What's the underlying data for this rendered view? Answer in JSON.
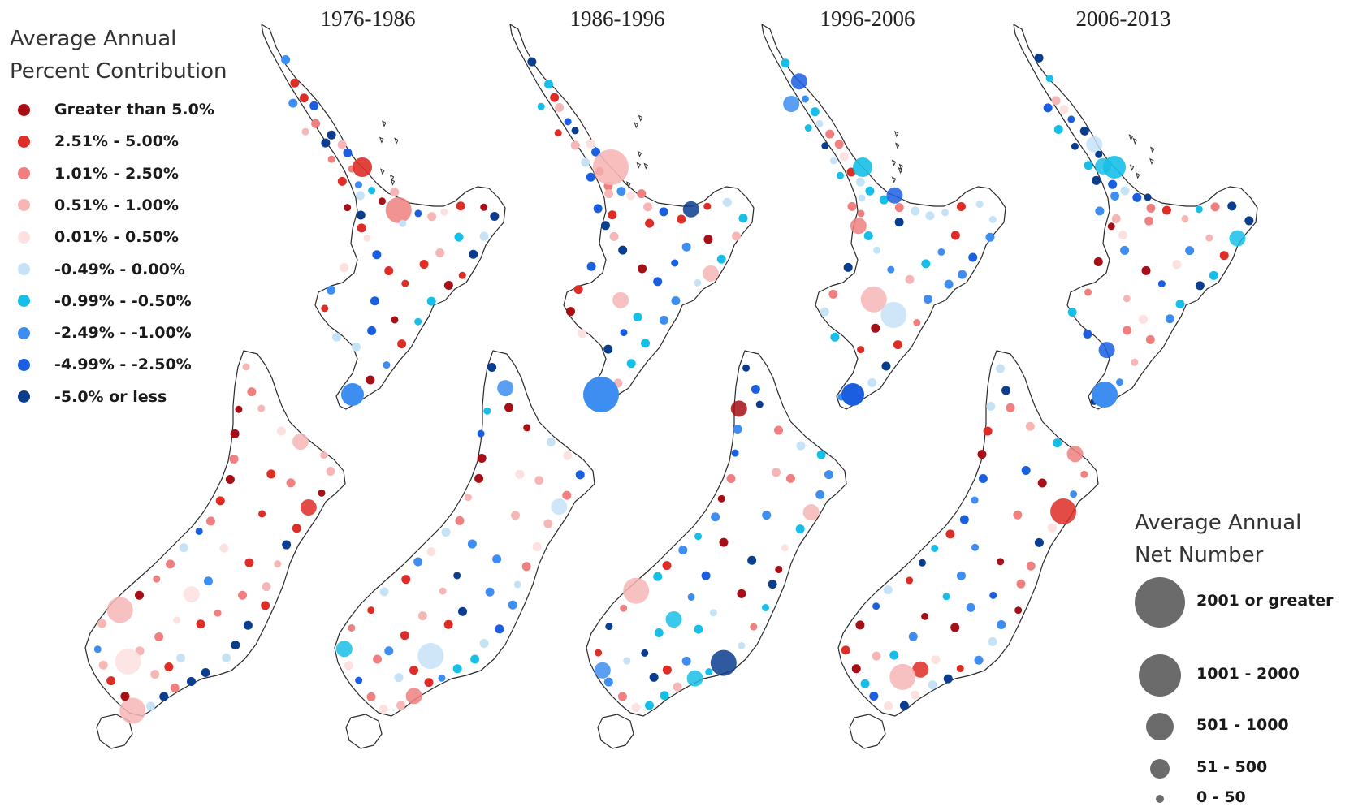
{
  "periods": [
    {
      "label": "1976-1986"
    },
    {
      "label": "1986-1996"
    },
    {
      "label": "1996-2006"
    },
    {
      "label": "2006-2013"
    }
  ],
  "legend_color": {
    "title_line1": "Average Annual",
    "title_line2": "Percent Contribution",
    "classes": [
      {
        "label": "Greater than 5.0%",
        "color": "#a50f15"
      },
      {
        "label": "2.51% - 5.00%",
        "color": "#de2d26"
      },
      {
        "label": "1.01% - 2.50%",
        "color": "#f08080"
      },
      {
        "label": "0.51% - 1.00%",
        "color": "#f7b6b6"
      },
      {
        "label": "0.01% - 0.50%",
        "color": "#fde0e0"
      },
      {
        "label": "-0.49% - 0.00%",
        "color": "#c6e2f7"
      },
      {
        "label": "-0.99% - -0.50%",
        "color": "#17bfe8"
      },
      {
        "label": "-2.49% - -1.00%",
        "color": "#3d8ef0"
      },
      {
        "label": "-4.99% - -2.50%",
        "color": "#1b5fe0"
      },
      {
        "label": "-5.0% or less",
        "color": "#0b3d8f"
      }
    ]
  },
  "legend_size": {
    "title_line1": "Average Annual",
    "title_line2": "Net Number",
    "classes": [
      {
        "label": "2001 or greater"
      },
      {
        "label": "1001 - 2000"
      },
      {
        "label": "501 - 1000"
      },
      {
        "label": "51 - 500"
      },
      {
        "label": "0 - 50"
      }
    ],
    "symbol_color": "#6b6b6b"
  }
}
